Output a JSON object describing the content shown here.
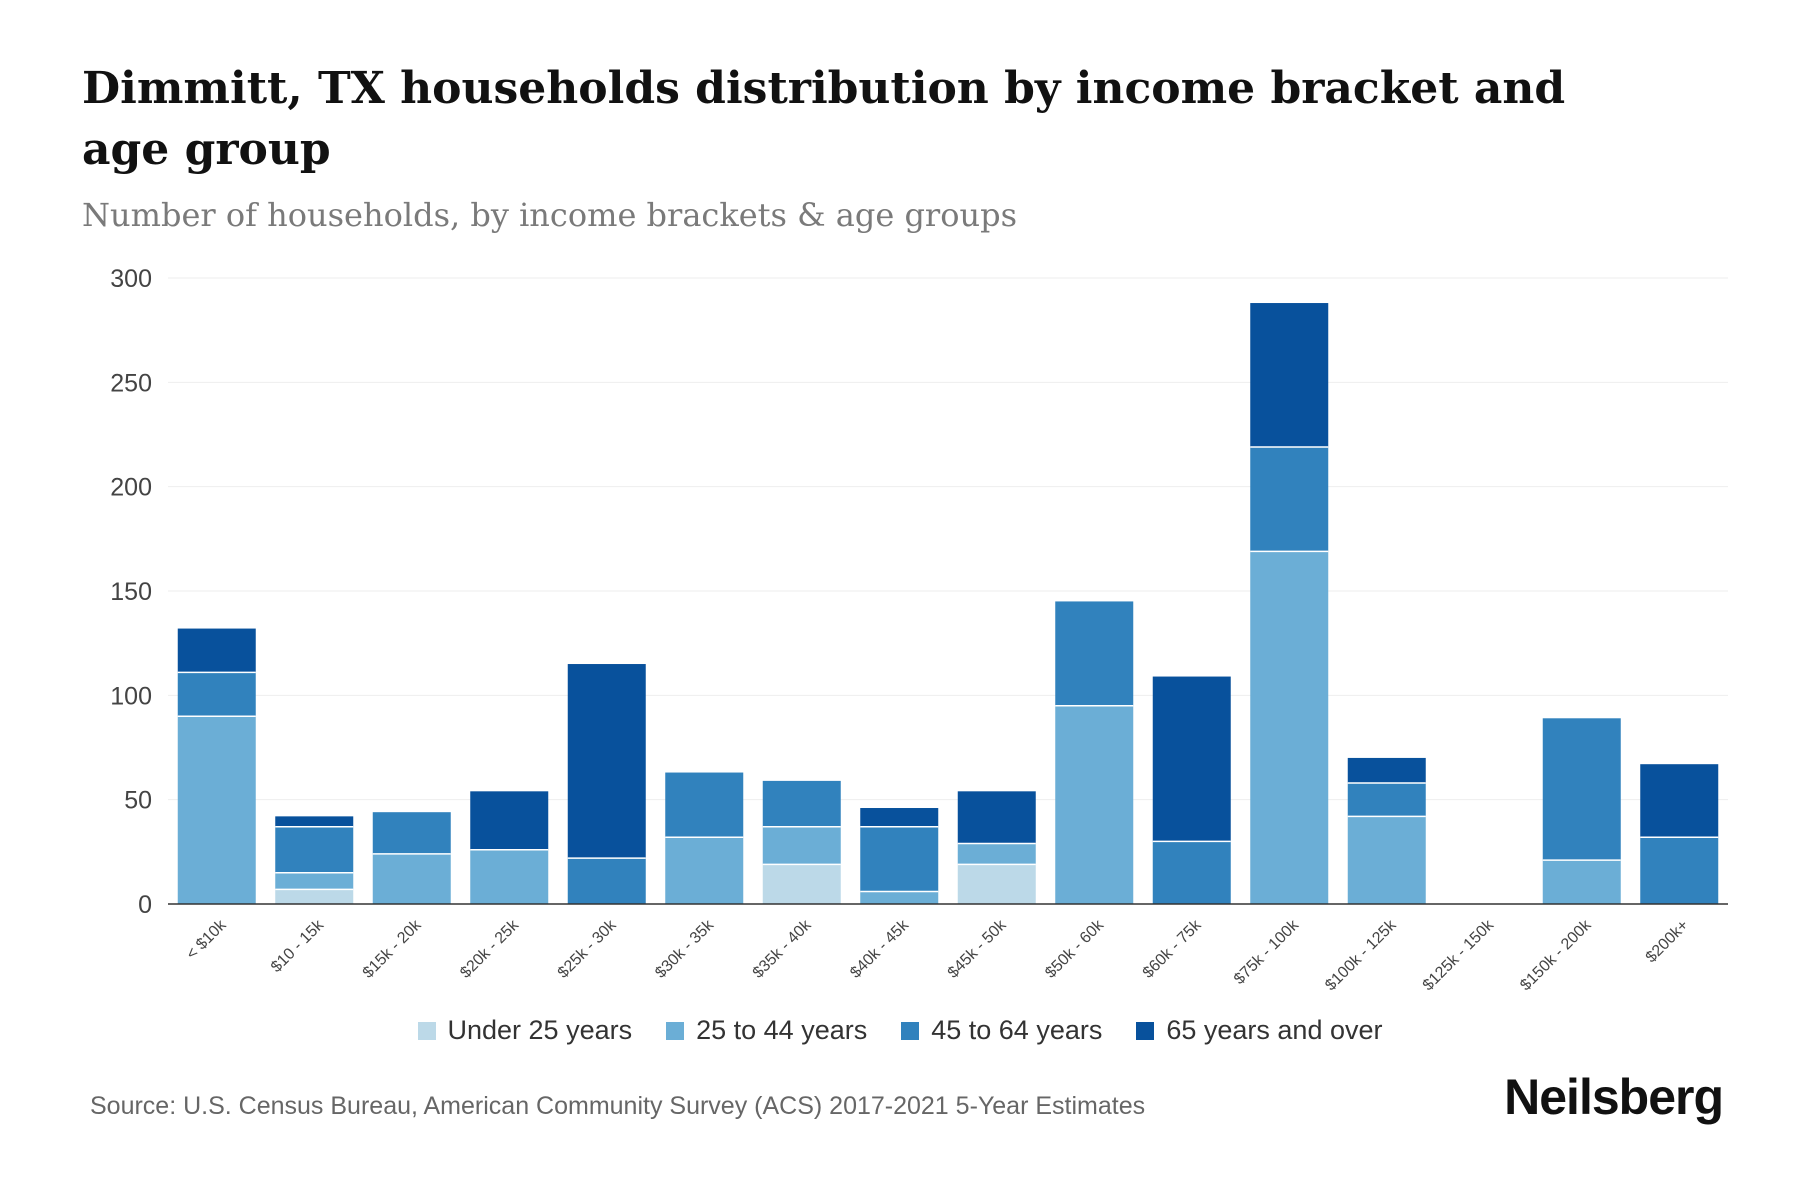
{
  "brand": "Neilsberg",
  "source": "Source: U.S. Census Bureau, American Community Survey (ACS) 2017-2021 5-Year Estimates",
  "colors": {
    "under25": "#bcd9e8",
    "age25_44": "#6baed6",
    "age45_64": "#3182bd",
    "age65plus": "#08519c",
    "grid": "#eeeeee",
    "axis": "#333333"
  },
  "chart_data": {
    "type": "bar",
    "stacked": true,
    "title": "Dimmitt, TX households distribution by income bracket and age group",
    "subtitle": "Number of households, by income brackets & age groups",
    "xlabel": "",
    "ylabel": "",
    "ylim": [
      0,
      300
    ],
    "yticks": [
      0,
      50,
      100,
      150,
      200,
      250,
      300
    ],
    "grid": true,
    "legend_position": "bottom",
    "categories": [
      "< $10k",
      "$10 - 15k",
      "$15k - 20k",
      "$20k - 25k",
      "$25k - 30k",
      "$30k - 35k",
      "$35k - 40k",
      "$40k - 45k",
      "$45k - 50k",
      "$50k - 60k",
      "$60k - 75k",
      "$75k - 100k",
      "$100k - 125k",
      "$125k - 150k",
      "$150k - 200k",
      "$200k+"
    ],
    "series": [
      {
        "name": "Under 25 years",
        "color_key": "under25",
        "values": [
          0,
          7,
          0,
          0,
          0,
          0,
          19,
          0,
          19,
          0,
          0,
          0,
          0,
          0,
          0,
          0
        ]
      },
      {
        "name": "25 to 44 years",
        "color_key": "age25_44",
        "values": [
          90,
          8,
          24,
          26,
          0,
          32,
          18,
          6,
          10,
          95,
          0,
          169,
          42,
          0,
          21,
          0
        ]
      },
      {
        "name": "45 to 64 years",
        "color_key": "age45_64",
        "values": [
          21,
          22,
          20,
          0,
          22,
          31,
          22,
          31,
          0,
          50,
          30,
          50,
          16,
          0,
          68,
          32
        ]
      },
      {
        "name": "65 years and over",
        "color_key": "age65plus",
        "values": [
          21,
          5,
          0,
          28,
          93,
          0,
          0,
          9,
          25,
          0,
          79,
          69,
          12,
          0,
          0,
          35
        ]
      }
    ]
  }
}
